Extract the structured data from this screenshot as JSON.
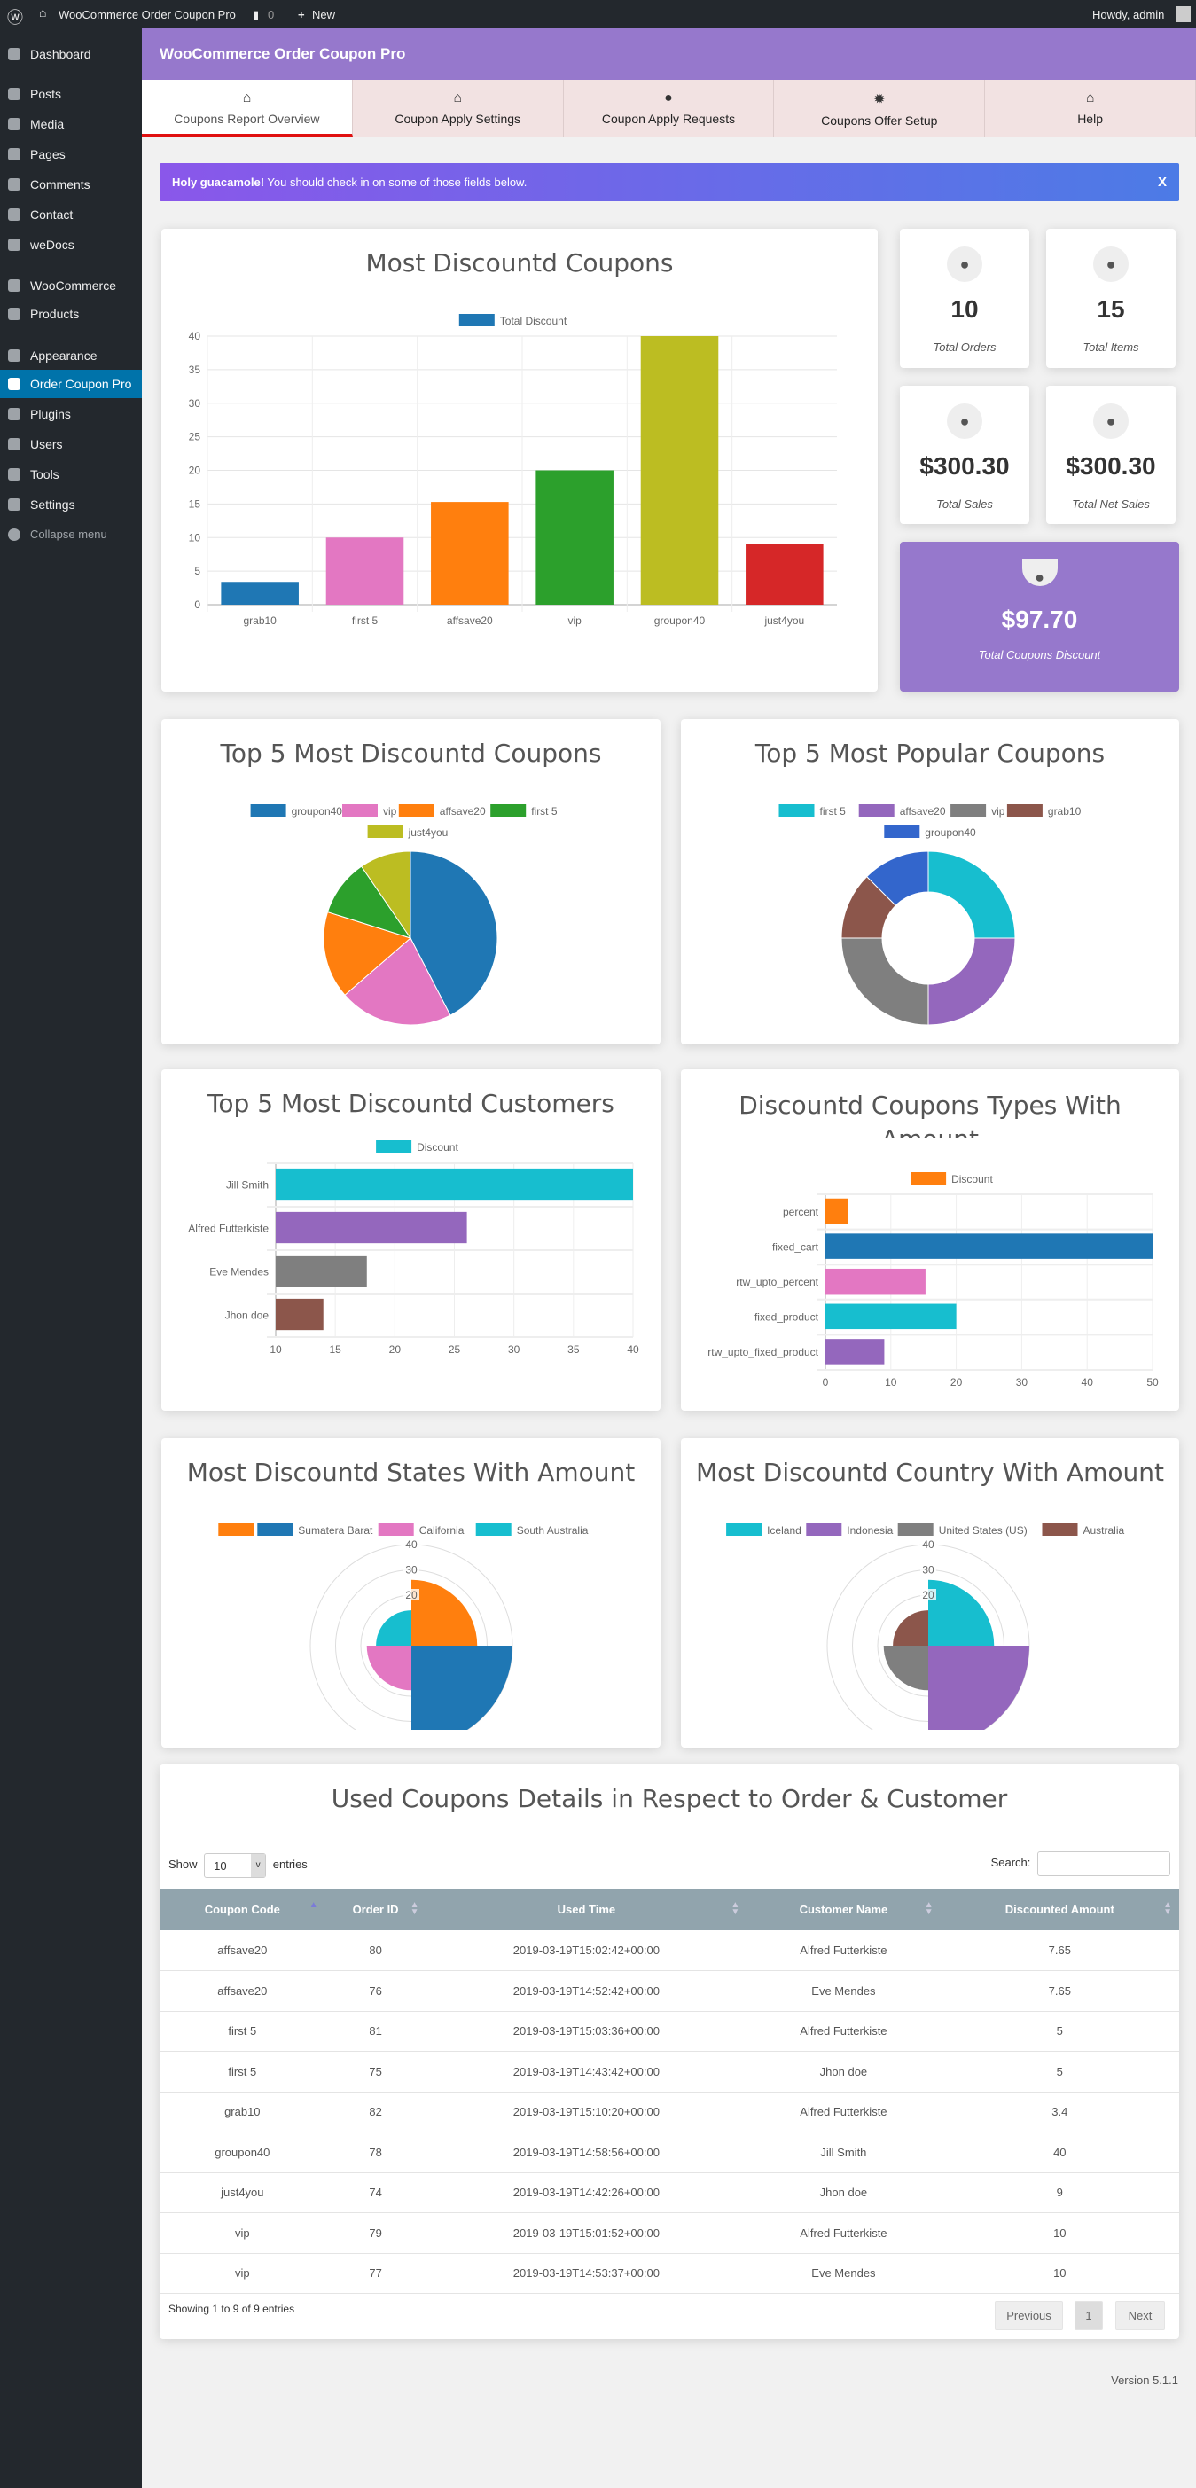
{
  "adminbar": {
    "site": "WooCommerce Order Coupon Pro",
    "comments": "0",
    "new": "New",
    "howdy": "Howdy, admin"
  },
  "sidebar": [
    "Dashboard",
    "Posts",
    "Media",
    "Pages",
    "Comments",
    "Contact",
    "weDocs",
    "WooCommerce",
    "Products",
    "Appearance",
    "Order Coupon Pro",
    "Plugins",
    "Users",
    "Tools",
    "Settings",
    "Collapse menu"
  ],
  "header": {
    "title": "WooCommerce Order Coupon Pro"
  },
  "tabs": [
    {
      "label": "Coupons Report Overview",
      "icon": "home"
    },
    {
      "label": "Coupon Apply Settings",
      "icon": "home"
    },
    {
      "label": "Coupon Apply Requests",
      "icon": "user"
    },
    {
      "label": "Coupons Offer Setup",
      "icon": "gear"
    },
    {
      "label": "Help",
      "icon": "home"
    }
  ],
  "alert": {
    "strong": "Holy guacamole!",
    "text": " You should check in on some of those fields below.",
    "close": "X"
  },
  "stats": [
    {
      "value": "10",
      "label": "Total Orders"
    },
    {
      "value": "15",
      "label": "Total Items"
    },
    {
      "value": "$300.30",
      "label": "Total Sales"
    },
    {
      "value": "$300.30",
      "label": "Total Net Sales"
    },
    {
      "value": "$97.70",
      "label": "Total Coupons Discount"
    }
  ],
  "colors": {
    "accent": "#9678cc",
    "active_menu": "#0073aa",
    "table_header": "#91a4ad"
  },
  "chart_data": [
    {
      "type": "bar",
      "title": "Most Discountd Coupons",
      "legend": [
        "Total Discount"
      ],
      "categories": [
        "grab10",
        "first 5",
        "affsave20",
        "vip",
        "groupon40",
        "just4you"
      ],
      "values": [
        3.4,
        10,
        15.3,
        20,
        40,
        9
      ],
      "colors": [
        "#1f77b4",
        "#e377c2",
        "#ff7f0e",
        "#2ca02c",
        "#bcbd22",
        "#d62728"
      ],
      "yticks": [
        "0",
        "5",
        "10",
        "15",
        "20",
        "25",
        "30",
        "35",
        "40"
      ],
      "ylim": [
        0,
        40
      ]
    },
    {
      "type": "pie",
      "title": "Top 5 Most Discountd Coupons",
      "categories": [
        "groupon40",
        "vip",
        "affsave20",
        "first 5",
        "just4you"
      ],
      "values": [
        40,
        20,
        15.3,
        10,
        9
      ],
      "colors": [
        "#1f77b4",
        "#e377c2",
        "#ff7f0e",
        "#2ca02c",
        "#bcbd22"
      ]
    },
    {
      "type": "doughnut",
      "title": "Top 5 Most Popular Coupons",
      "categories": [
        "first 5",
        "affsave20",
        "vip",
        "grab10",
        "groupon40"
      ],
      "values": [
        2,
        2,
        2,
        1,
        1
      ],
      "colors": [
        "#17becf",
        "#9467bd",
        "#7f7f7f",
        "#8c564b",
        "#3366cc"
      ]
    },
    {
      "type": "hbar",
      "title": "Top 5 Most Discountd Customers",
      "legend": [
        "Discount"
      ],
      "categories": [
        "Jill Smith",
        "Alfred Futterkiste",
        "Eve Mendes",
        "Jhon doe"
      ],
      "values": [
        40,
        26.05,
        17.65,
        14
      ],
      "colors": [
        "#17becf",
        "#9467bd",
        "#7f7f7f",
        "#8c564b"
      ],
      "xticks": [
        "10",
        "15",
        "20",
        "25",
        "30",
        "35",
        "40"
      ],
      "xlim": [
        10,
        40
      ]
    },
    {
      "type": "hbar",
      "title": "Discountd Coupons Types With Amount",
      "legend": [
        "Discount"
      ],
      "categories": [
        "percent",
        "fixed_cart",
        "rtw_upto_percent",
        "fixed_product",
        "rtw_upto_fixed_product"
      ],
      "values": [
        3.4,
        50,
        15.3,
        20,
        9
      ],
      "colors": [
        "#ff7f0e",
        "#1f77b4",
        "#e377c2",
        "#17becf",
        "#9467bd"
      ],
      "xticks": [
        "0",
        "10",
        "20",
        "30",
        "40",
        "50"
      ],
      "xlim": [
        0,
        50
      ]
    },
    {
      "type": "polar",
      "title": "Most Discountd States With Amount",
      "categories": [
        "",
        "Sumatera Barat",
        "California",
        "South Australia"
      ],
      "values": [
        26.05,
        40,
        17.65,
        14
      ],
      "colors": [
        "#ff7f0e",
        "#1f77b4",
        "#e377c2",
        "#17becf"
      ],
      "rticks": [
        "20",
        "30",
        "40"
      ],
      "rmax": 40
    },
    {
      "type": "polar",
      "title": "Most Discountd Country With Amount",
      "categories": [
        "Iceland",
        "Indonesia",
        "United States (US)",
        "Australia"
      ],
      "values": [
        26.05,
        40,
        17.65,
        14
      ],
      "colors": [
        "#17becf",
        "#9467bd",
        "#7f7f7f",
        "#8c564b"
      ],
      "rticks": [
        "20",
        "30",
        "40"
      ],
      "rmax": 40
    }
  ],
  "table": {
    "title": "Used Coupons Details in Respect to Order & Customer",
    "show": "Show",
    "length": "10",
    "entries": "entries",
    "search_label": "Search:",
    "search_value": "",
    "columns": [
      "Coupon Code",
      "Order ID",
      "Used Time",
      "Customer Name",
      "Discounted Amount"
    ],
    "rows": [
      [
        "affsave20",
        "80",
        "2019-03-19T15:02:42+00:00",
        "Alfred Futterkiste",
        "7.65"
      ],
      [
        "affsave20",
        "76",
        "2019-03-19T14:52:42+00:00",
        "Eve Mendes",
        "7.65"
      ],
      [
        "first 5",
        "81",
        "2019-03-19T15:03:36+00:00",
        "Alfred Futterkiste",
        "5"
      ],
      [
        "first 5",
        "75",
        "2019-03-19T14:43:42+00:00",
        "Jhon doe",
        "5"
      ],
      [
        "grab10",
        "82",
        "2019-03-19T15:10:20+00:00",
        "Alfred Futterkiste",
        "3.4"
      ],
      [
        "groupon40",
        "78",
        "2019-03-19T14:58:56+00:00",
        "Jill Smith",
        "40"
      ],
      [
        "just4you",
        "74",
        "2019-03-19T14:42:26+00:00",
        "Jhon doe",
        "9"
      ],
      [
        "vip",
        "79",
        "2019-03-19T15:01:52+00:00",
        "Alfred Futterkiste",
        "10"
      ],
      [
        "vip",
        "77",
        "2019-03-19T14:53:37+00:00",
        "Eve Mendes",
        "10"
      ]
    ],
    "info": "Showing 1 to 9 of 9 entries",
    "prev": "Previous",
    "page": "1",
    "next": "Next"
  },
  "footer": {
    "version": "Version 5.1.1"
  }
}
